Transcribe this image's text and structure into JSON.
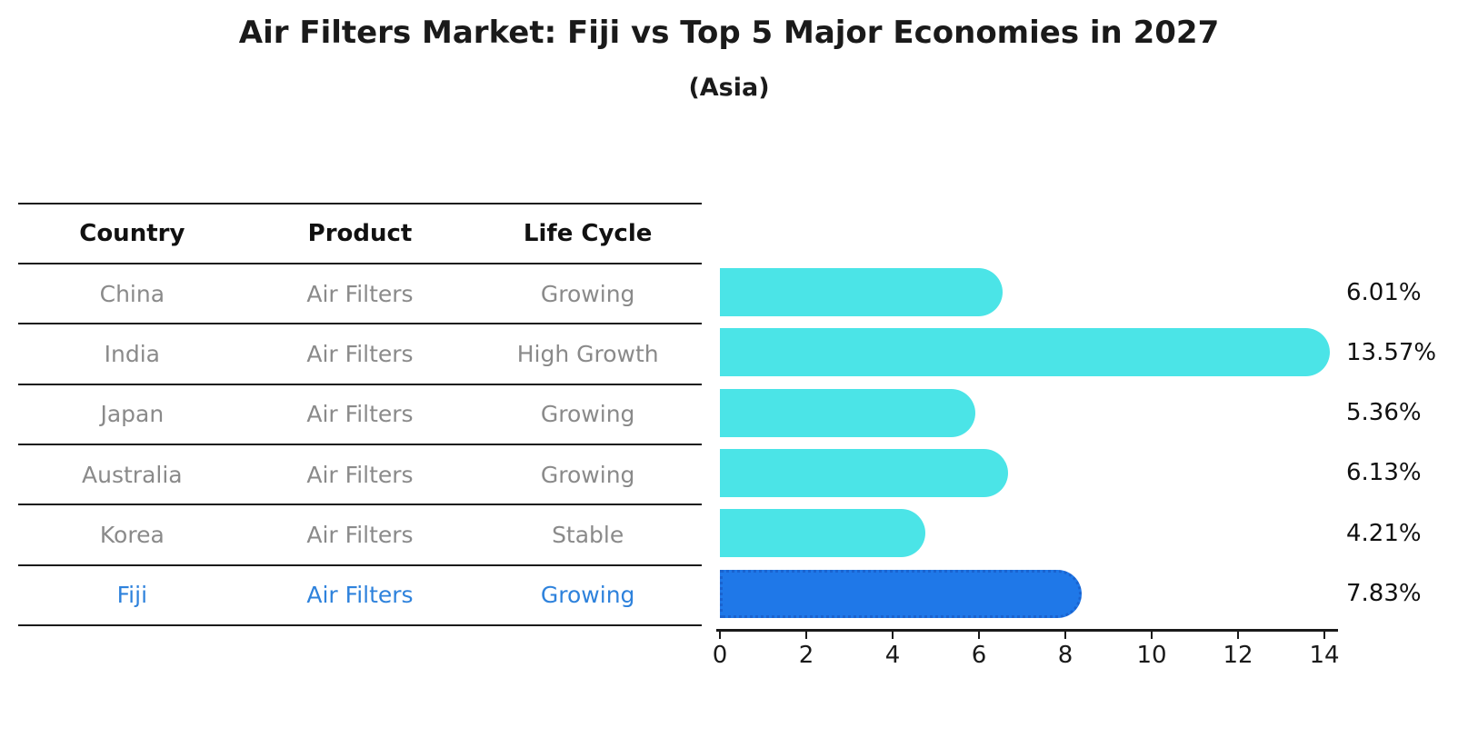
{
  "page": {
    "title": "Air Filters Market: Fiji vs Top 5 Major Economies in 2027",
    "subtitle": "(Asia)"
  },
  "table": {
    "headers": [
      "Country",
      "Product",
      "Life Cycle"
    ],
    "rows": [
      {
        "country": "China",
        "product": "Air Filters",
        "life_cycle": "Growing",
        "highlight": false
      },
      {
        "country": "India",
        "product": "Air Filters",
        "life_cycle": "High Growth",
        "highlight": false
      },
      {
        "country": "Japan",
        "product": "Air Filters",
        "life_cycle": "Growing",
        "highlight": false
      },
      {
        "country": "Australia",
        "product": "Air Filters",
        "life_cycle": "Growing",
        "highlight": false
      },
      {
        "country": "Korea",
        "product": "Air Filters",
        "life_cycle": "Stable",
        "highlight": false
      },
      {
        "country": "Fiji",
        "product": "Air Filters",
        "life_cycle": "Growing",
        "highlight": true
      }
    ]
  },
  "chart_data": {
    "type": "bar",
    "orientation": "horizontal",
    "title": "Air Filters Market: Fiji vs Top 5 Major Economies in 2027",
    "subtitle": "(Asia)",
    "categories": [
      "China",
      "India",
      "Japan",
      "Australia",
      "Korea",
      "Fiji"
    ],
    "values": [
      6.01,
      13.57,
      5.36,
      6.13,
      4.21,
      7.83
    ],
    "value_labels": [
      "6.01%",
      "13.57%",
      "5.36%",
      "6.13%",
      "4.21%",
      "7.83%"
    ],
    "xlabel": "",
    "ylabel": "",
    "xlim": [
      0,
      14
    ],
    "x_ticks": [
      0,
      2,
      4,
      6,
      8,
      10,
      12,
      14
    ],
    "grid": false,
    "legend": false,
    "highlight_index": 5,
    "colors": {
      "bar": "#4BE4E7",
      "highlight_bar": "#1F78E8",
      "highlight_bar_edge": "#1A63CF",
      "highlight_text": "#2E82DC",
      "table_text": "#8A8A8A",
      "header_text": "#111111",
      "axis": "#1A1A1A"
    }
  }
}
